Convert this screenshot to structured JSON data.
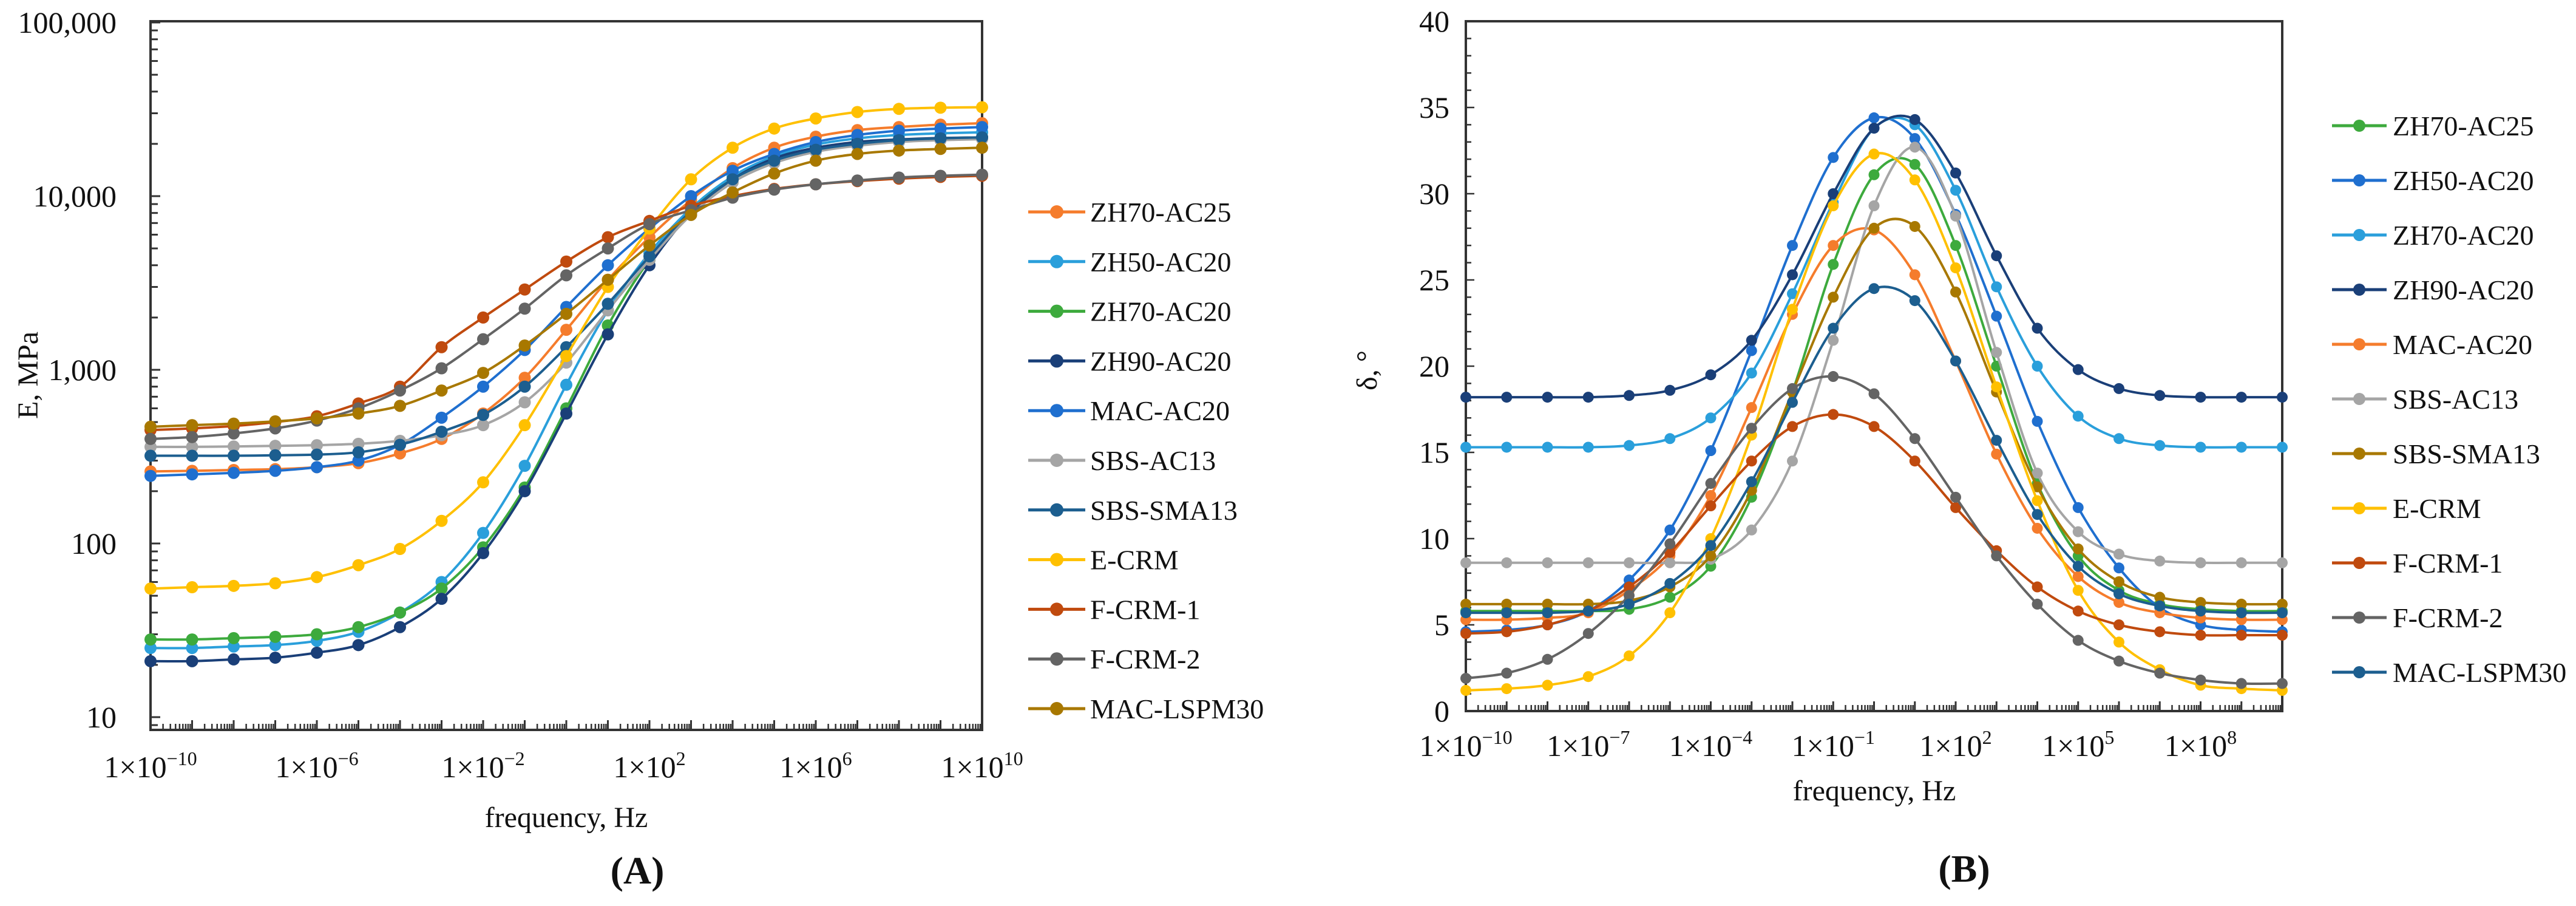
{
  "chart_data": [
    {
      "type": "line",
      "panel_label": "(A)",
      "xlabel": "frequency, Hz",
      "ylabel": "E, MPa",
      "xscale": "log",
      "yscale": "log",
      "xlim": [
        1e-10,
        10000000000.0
      ],
      "ylim": [
        10,
        100000
      ],
      "grid": false,
      "legend_position": "right",
      "x": [
        1e-10,
        1e-09,
        1e-08,
        1e-07,
        1e-06,
        1e-05,
        0.0001,
        0.001,
        0.01,
        0.1,
        1,
        10,
        100,
        1000.0,
        10000.0,
        100000.0,
        1000000.0,
        10000000.0,
        100000000.0,
        1000000000.0,
        10000000000.0
      ],
      "x_ticks": [
        {
          "value": 1e-10,
          "base": "1×10",
          "exp": "−10"
        },
        {
          "value": 1e-06,
          "base": "1×10",
          "exp": "−6"
        },
        {
          "value": 0.01,
          "base": "1×10",
          "exp": "−2"
        },
        {
          "value": 100.0,
          "base": "1×10",
          "exp": "2"
        },
        {
          "value": 1000000.0,
          "base": "1×10",
          "exp": "6"
        },
        {
          "value": 10000000000.0,
          "base": "1×10",
          "exp": "10"
        }
      ],
      "y_ticks": [
        {
          "value": 10,
          "label": "10"
        },
        {
          "value": 100,
          "label": "100"
        },
        {
          "value": 1000,
          "label": "1,000"
        },
        {
          "value": 10000,
          "label": "10,000"
        },
        {
          "value": 100000,
          "label": "100,000"
        }
      ],
      "series": [
        {
          "name": "ZH70-AC25",
          "color": "#F57C2C",
          "values": [
            260,
            262,
            265,
            268,
            275,
            290,
            330,
            400,
            560,
            900,
            1700,
            3300,
            5800,
            9500,
            14500,
            19000,
            22000,
            24000,
            25000,
            25800,
            26300
          ]
        },
        {
          "name": "ZH50-AC20",
          "color": "#2A9FDB",
          "values": [
            25,
            25,
            25.5,
            26,
            27.5,
            31,
            40,
            60,
            115,
            280,
            820,
            2200,
            4700,
            8500,
            13000,
            17000,
            19800,
            21500,
            22500,
            23000,
            23300
          ]
        },
        {
          "name": "ZH70-AC20",
          "color": "#3DAA3D",
          "values": [
            28,
            28,
            28.5,
            29,
            30,
            33,
            40,
            55,
            95,
            210,
            600,
            1800,
            4300,
            8200,
            12500,
            16000,
            18500,
            20000,
            21000,
            21500,
            21800
          ]
        },
        {
          "name": "ZH90-AC20",
          "color": "#1A3F78",
          "values": [
            21,
            21,
            21.5,
            22,
            23.5,
            26,
            33,
            48,
            88,
            200,
            560,
            1600,
            4000,
            8000,
            12500,
            16500,
            19000,
            20500,
            21200,
            21600,
            21800
          ]
        },
        {
          "name": "MAC-AC20",
          "color": "#1F6FCF",
          "values": [
            245,
            250,
            255,
            262,
            275,
            300,
            370,
            530,
            800,
            1300,
            2300,
            4000,
            6500,
            10000,
            14000,
            17500,
            20500,
            22500,
            23800,
            24500,
            25000
          ]
        },
        {
          "name": "SBS-AC13",
          "color": "#A5A5A5",
          "values": [
            360,
            360,
            362,
            365,
            368,
            375,
            390,
            420,
            480,
            650,
            1100,
            2200,
            4300,
            7800,
            12000,
            15500,
            18000,
            19500,
            20500,
            21000,
            21300
          ]
        },
        {
          "name": "SBS-SMA13",
          "color": "#1C5E8F",
          "values": [
            320,
            320,
            320,
            322,
            325,
            335,
            370,
            440,
            550,
            800,
            1350,
            2400,
            4500,
            8200,
            12500,
            16000,
            18500,
            20000,
            21000,
            21500,
            21800
          ]
        },
        {
          "name": "E-CRM",
          "color": "#FFC000",
          "values": [
            55,
            56,
            57,
            59,
            64,
            75,
            93,
            135,
            225,
            480,
            1200,
            3000,
            6500,
            12500,
            19000,
            24500,
            28000,
            30500,
            31800,
            32300,
            32500
          ]
        },
        {
          "name": "F-CRM-1",
          "color": "#C04A0E",
          "values": [
            450,
            460,
            475,
            500,
            540,
            640,
            800,
            1350,
            2000,
            2900,
            4200,
            5800,
            7200,
            8800,
            10000,
            11000,
            11700,
            12200,
            12600,
            12900,
            13100
          ]
        },
        {
          "name": "F-CRM-2",
          "color": "#646464",
          "values": [
            400,
            410,
            430,
            460,
            510,
            600,
            760,
            1020,
            1500,
            2250,
            3500,
            5000,
            6900,
            8300,
            9800,
            10900,
            11700,
            12300,
            12800,
            13100,
            13300
          ]
        },
        {
          "name": "MAC-LSPM30",
          "color": "#A87800",
          "values": [
            470,
            480,
            490,
            505,
            525,
            560,
            620,
            760,
            960,
            1380,
            2100,
            3300,
            5200,
            7800,
            10500,
            13500,
            16000,
            17500,
            18300,
            18700,
            19000
          ]
        }
      ]
    },
    {
      "type": "line",
      "panel_label": "(B)",
      "xlabel": "frequency, Hz",
      "ylabel": "δ, °",
      "xscale": "log",
      "yscale": "linear",
      "xlim": [
        1e-10,
        10000000000.0
      ],
      "ylim": [
        0,
        40
      ],
      "grid": false,
      "legend_position": "right",
      "x": [
        1e-10,
        1e-09,
        1e-08,
        1e-07,
        1e-06,
        1e-05,
        0.0001,
        0.001,
        0.01,
        0.1,
        1,
        10,
        100,
        1000.0,
        10000.0,
        100000.0,
        1000000.0,
        10000000.0,
        100000000.0,
        1000000000.0,
        10000000000.0
      ],
      "x_ticks": [
        {
          "value": 1e-10,
          "base": "1×10",
          "exp": "−10"
        },
        {
          "value": 1e-07,
          "base": "1×10",
          "exp": "−7"
        },
        {
          "value": 0.0001,
          "base": "1×10",
          "exp": "−4"
        },
        {
          "value": 0.1,
          "base": "1×10",
          "exp": "−1"
        },
        {
          "value": 100.0,
          "base": "1×10",
          "exp": "2"
        },
        {
          "value": 100000.0,
          "base": "1×10",
          "exp": "5"
        },
        {
          "value": 100000000.0,
          "base": "1×10",
          "exp": "8"
        }
      ],
      "y_ticks": [
        {
          "value": 0,
          "label": "0"
        },
        {
          "value": 5,
          "label": "5"
        },
        {
          "value": 10,
          "label": "10"
        },
        {
          "value": 15,
          "label": "15"
        },
        {
          "value": 20,
          "label": "20"
        },
        {
          "value": 25,
          "label": "25"
        },
        {
          "value": 30,
          "label": "30"
        },
        {
          "value": 35,
          "label": "35"
        },
        {
          "value": 40,
          "label": "40"
        }
      ],
      "series": [
        {
          "name": "ZH70-AC25",
          "color": "#3DAA3D",
          "values": [
            5.8,
            5.8,
            5.8,
            5.8,
            5.9,
            6.6,
            8.4,
            12.4,
            18.5,
            25.9,
            31.1,
            31.7,
            27.0,
            20.0,
            13.2,
            9.0,
            7.0,
            6.2,
            5.9,
            5.8,
            5.8
          ]
        },
        {
          "name": "ZH50-AC20",
          "color": "#1F6FCF",
          "values": [
            4.6,
            4.7,
            5.0,
            5.8,
            7.6,
            10.5,
            15.1,
            20.9,
            27.0,
            32.1,
            34.4,
            33.2,
            28.8,
            22.9,
            16.8,
            11.8,
            8.3,
            6.0,
            5.0,
            4.7,
            4.6
          ]
        },
        {
          "name": "ZH70-AC20",
          "color": "#2A9FDB",
          "values": [
            15.3,
            15.3,
            15.3,
            15.3,
            15.4,
            15.8,
            17.0,
            19.6,
            24.2,
            29.5,
            33.8,
            34.0,
            30.2,
            24.6,
            20.0,
            17.1,
            15.8,
            15.4,
            15.3,
            15.3,
            15.3
          ]
        },
        {
          "name": "ZH90-AC20",
          "color": "#1A3F78",
          "values": [
            18.2,
            18.2,
            18.2,
            18.2,
            18.3,
            18.6,
            19.5,
            21.5,
            25.3,
            30.0,
            33.8,
            34.3,
            31.2,
            26.4,
            22.2,
            19.8,
            18.7,
            18.3,
            18.2,
            18.2,
            18.2
          ]
        },
        {
          "name": "MAC-AC20",
          "color": "#F57C2C",
          "values": [
            5.3,
            5.3,
            5.4,
            5.7,
            7.0,
            9.0,
            12.5,
            17.6,
            23.0,
            27.0,
            27.9,
            25.3,
            20.3,
            14.9,
            10.6,
            7.8,
            6.3,
            5.7,
            5.4,
            5.3,
            5.3
          ]
        },
        {
          "name": "SBS-AC13",
          "color": "#A5A5A5",
          "values": [
            8.6,
            8.6,
            8.6,
            8.6,
            8.6,
            8.6,
            8.8,
            10.5,
            14.5,
            21.5,
            29.3,
            32.7,
            28.7,
            20.8,
            13.8,
            10.4,
            9.1,
            8.7,
            8.6,
            8.6,
            8.6
          ]
        },
        {
          "name": "SBS-SMA13",
          "color": "#A87800",
          "values": [
            6.2,
            6.2,
            6.2,
            6.2,
            6.4,
            7.2,
            9.0,
            12.8,
            18.5,
            24.0,
            28.0,
            28.1,
            24.3,
            18.5,
            13.0,
            9.4,
            7.5,
            6.6,
            6.3,
            6.2,
            6.2
          ]
        },
        {
          "name": "E-CRM",
          "color": "#FFC000",
          "values": [
            1.2,
            1.3,
            1.5,
            2.0,
            3.2,
            5.7,
            10.0,
            16.0,
            23.3,
            29.3,
            32.3,
            30.8,
            25.7,
            18.8,
            12.2,
            7.0,
            4.0,
            2.4,
            1.5,
            1.3,
            1.2
          ]
        },
        {
          "name": "F-CRM-1",
          "color": "#C04A0E",
          "values": [
            4.5,
            4.6,
            5.0,
            5.8,
            7.2,
            9.2,
            11.9,
            14.5,
            16.5,
            17.2,
            16.5,
            14.5,
            11.8,
            9.3,
            7.2,
            5.8,
            5.0,
            4.6,
            4.4,
            4.4,
            4.4
          ]
        },
        {
          "name": "F-CRM-2",
          "color": "#646464",
          "values": [
            1.9,
            2.2,
            3.0,
            4.5,
            6.7,
            9.7,
            13.2,
            16.4,
            18.7,
            19.4,
            18.4,
            15.8,
            12.4,
            9.0,
            6.2,
            4.1,
            2.9,
            2.2,
            1.8,
            1.6,
            1.6
          ]
        },
        {
          "name": "MAC-LSPM30",
          "color": "#1C5E8F",
          "values": [
            5.7,
            5.7,
            5.7,
            5.8,
            6.2,
            7.4,
            9.6,
            13.3,
            17.9,
            22.2,
            24.5,
            23.8,
            20.3,
            15.7,
            11.4,
            8.4,
            6.8,
            6.1,
            5.8,
            5.7,
            5.7
          ]
        }
      ]
    }
  ]
}
